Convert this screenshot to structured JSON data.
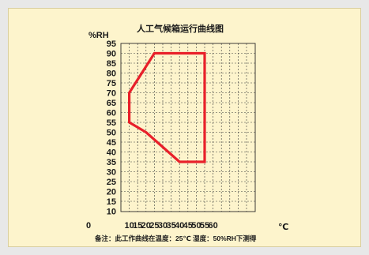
{
  "chart_data": {
    "type": "line",
    "title": "人工气候箱运行曲线图",
    "xlabel": "℃",
    "ylabel": "%RH",
    "note": "备注：此工作曲线在温度：25℃ 湿度：50%RH下测得",
    "xlim": [
      0,
      60
    ],
    "ylim": [
      10,
      95
    ],
    "x_ticks": [
      "0",
      "10",
      "15",
      "20",
      "25",
      "30",
      "35",
      "40",
      "45",
      "50",
      "55",
      "60"
    ],
    "y_ticks": [
      "95",
      "90",
      "85",
      "80",
      "75",
      "70",
      "65",
      "60",
      "55",
      "50",
      "45",
      "40",
      "35",
      "30",
      "25",
      "20",
      "15",
      "10"
    ],
    "grid": true,
    "series": [
      {
        "color": "#e8202a",
        "closed": true,
        "points": [
          {
            "x": 10,
            "y": 55
          },
          {
            "x": 10,
            "y": 70
          },
          {
            "x": 25,
            "y": 90
          },
          {
            "x": 55,
            "y": 90
          },
          {
            "x": 55,
            "y": 35
          },
          {
            "x": 40,
            "y": 35
          },
          {
            "x": 20,
            "y": 50
          }
        ]
      }
    ]
  }
}
